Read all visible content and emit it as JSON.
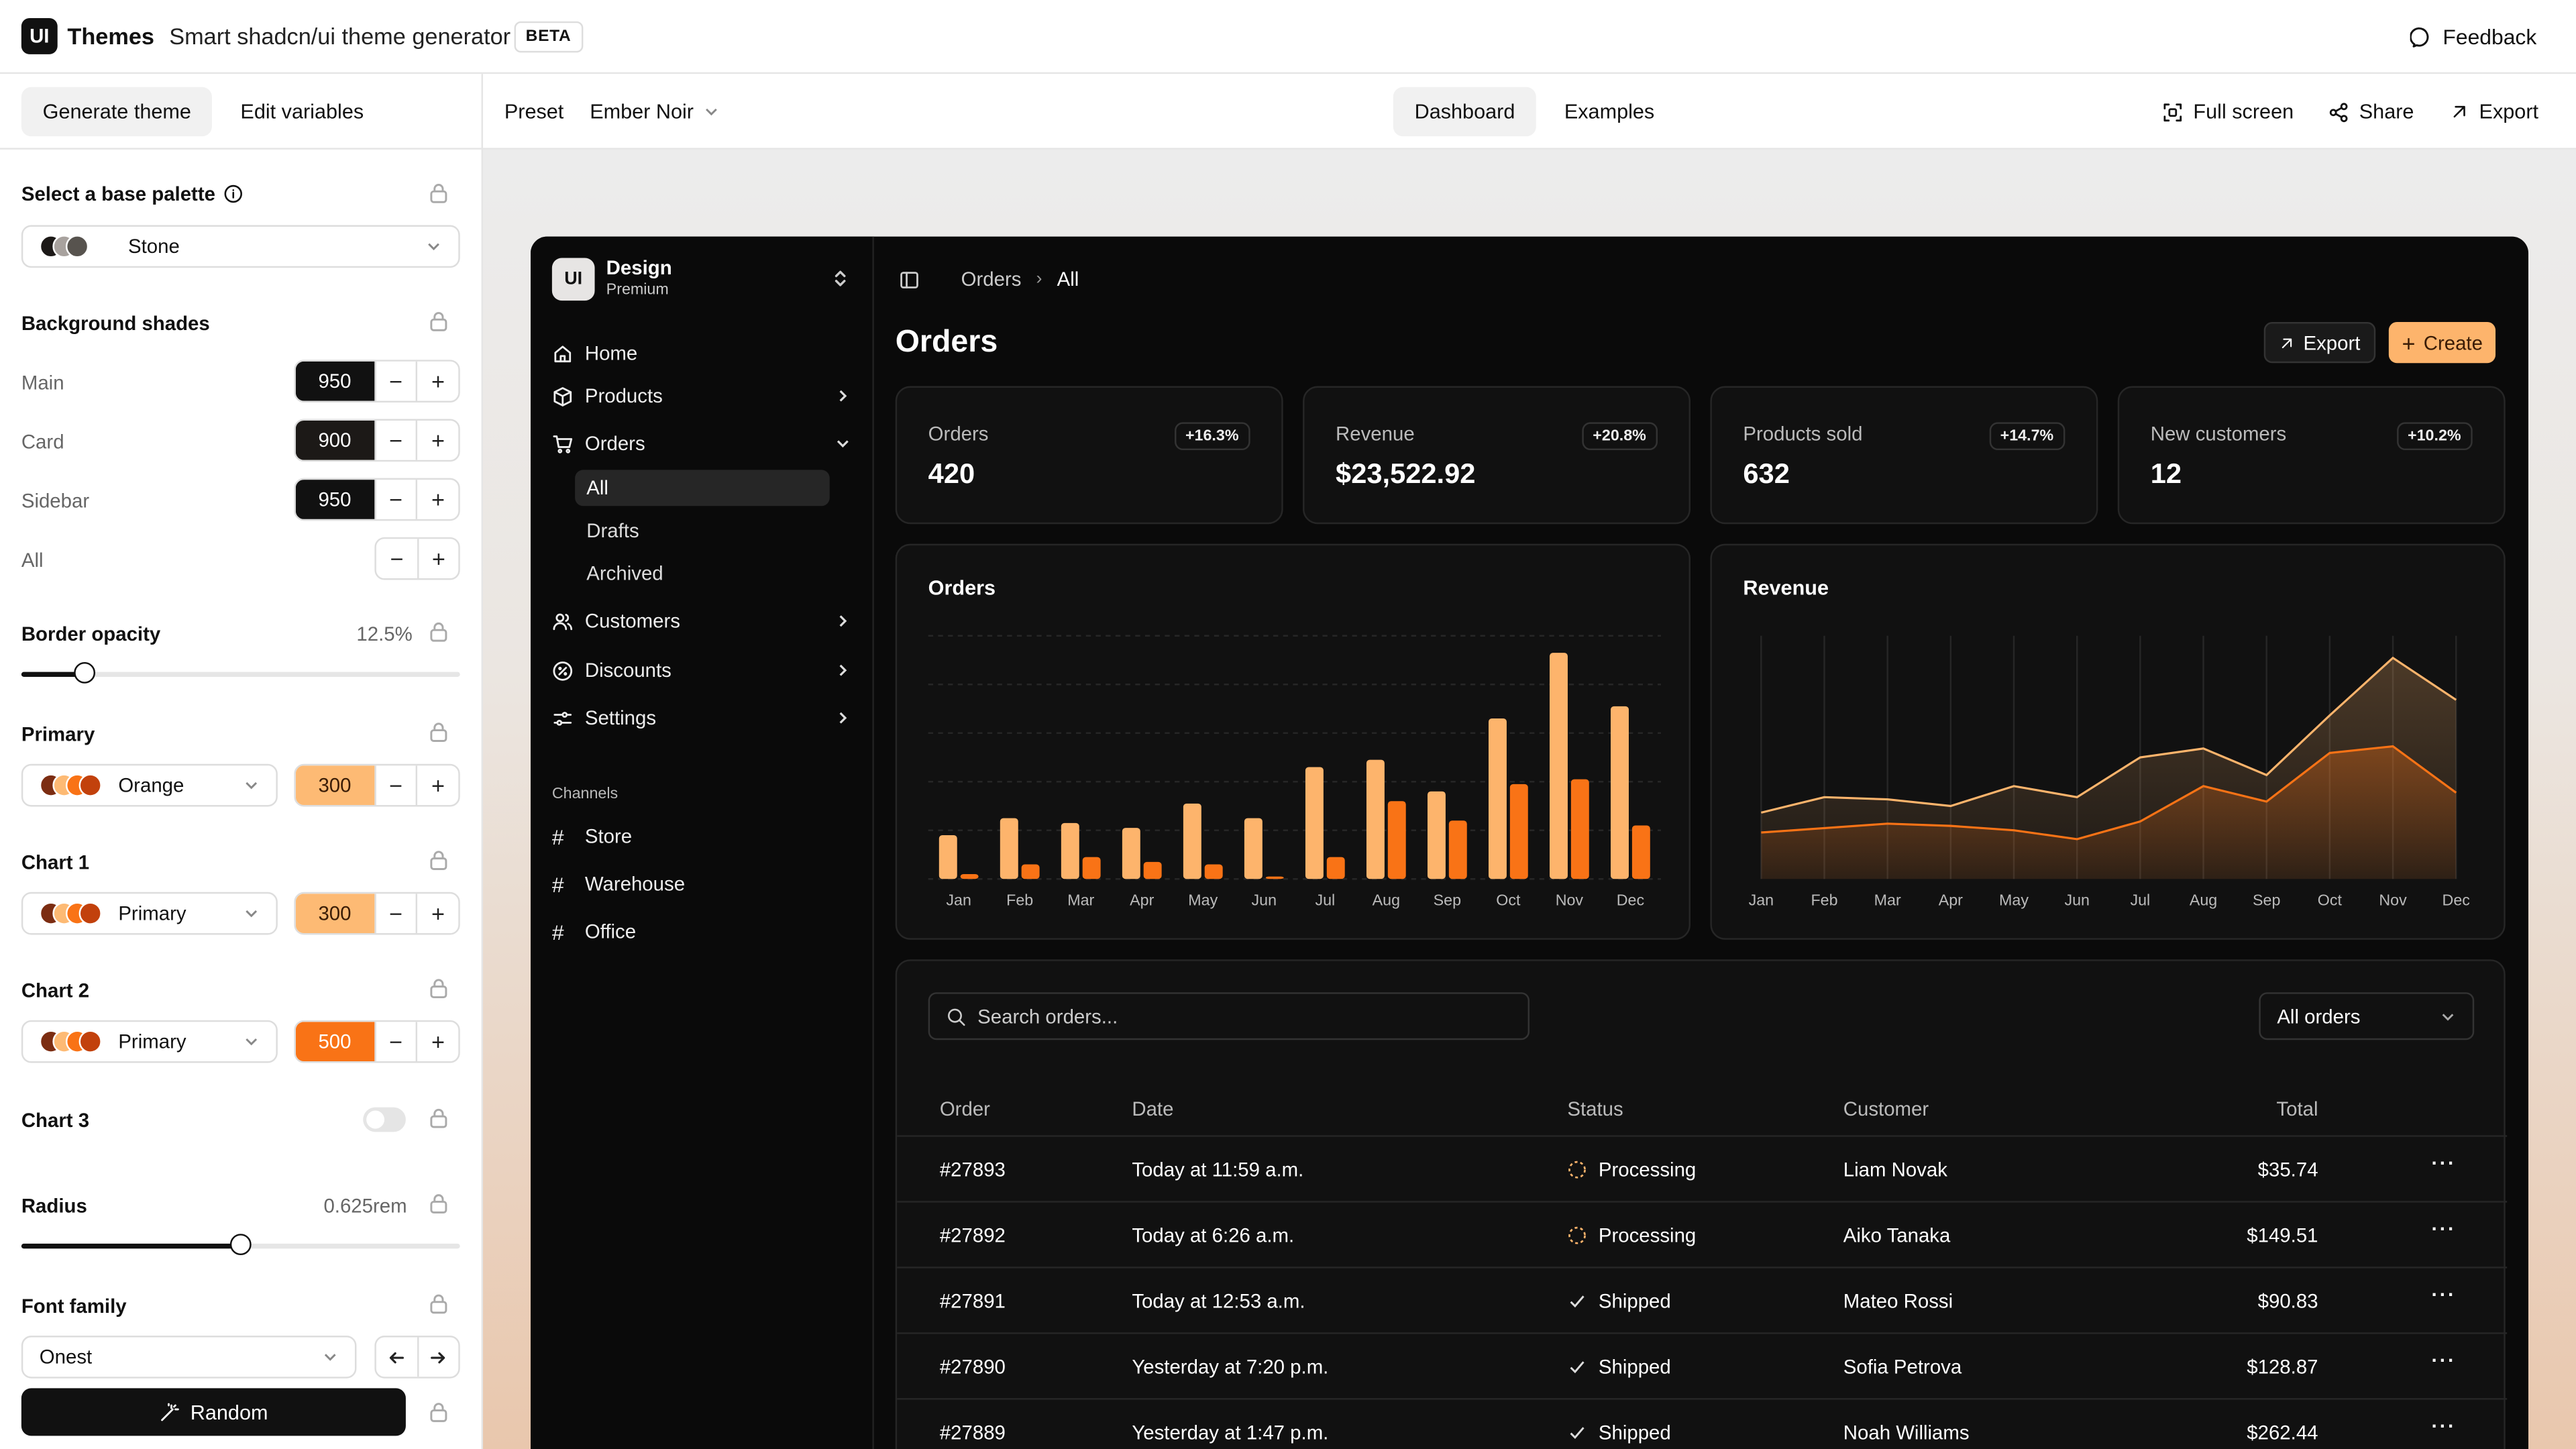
{
  "header": {
    "logo": "UI",
    "app_name": "Themes",
    "subtitle": "Smart shadcn/ui theme generator",
    "badge": "BETA",
    "feedback": "Feedback"
  },
  "left": {
    "tabs": [
      "Generate theme",
      "Edit variables"
    ],
    "base_palette": {
      "label": "Select a base palette",
      "value": "Stone"
    },
    "background_shades": {
      "label": "Background shades",
      "rows": [
        {
          "label": "Main",
          "value": "950"
        },
        {
          "label": "Card",
          "value": "900"
        },
        {
          "label": "Sidebar",
          "value": "950"
        },
        {
          "label": "All",
          "value": ""
        }
      ]
    },
    "border_opacity": {
      "label": "Border opacity",
      "value": "12.5%",
      "level": 0.125
    },
    "primary": {
      "label": "Primary",
      "select": "Orange",
      "shade": "300"
    },
    "chart1": {
      "label": "Chart 1",
      "select": "Primary",
      "shade": "300"
    },
    "chart2": {
      "label": "Chart 2",
      "select": "Primary",
      "shade": "500"
    },
    "chart3": {
      "label": "Chart 3",
      "enabled": false
    },
    "radius": {
      "label": "Radius",
      "value": "0.625rem",
      "level": 0.5
    },
    "font_family": {
      "label": "Font family",
      "value": "Onest"
    },
    "random_button": "Random"
  },
  "toolbar": {
    "preset_label": "Preset",
    "preset_value": "Ember Noir",
    "tabs": [
      "Dashboard",
      "Examples"
    ],
    "fullscreen": "Full screen",
    "share": "Share",
    "export": "Export"
  },
  "colors": {
    "accent_light": "#fdb46c",
    "accent": "#f97316",
    "app_bg": "#0a0a0a",
    "card_bg": "#111111"
  },
  "app": {
    "team": {
      "logo": "UI",
      "name": "Design",
      "plan": "Premium"
    },
    "nav": [
      {
        "label": "Home",
        "icon": "home-icon"
      },
      {
        "label": "Products",
        "icon": "box-icon"
      },
      {
        "label": "Orders",
        "icon": "cart-icon"
      },
      {
        "label": "Customers",
        "icon": "users-icon"
      },
      {
        "label": "Discounts",
        "icon": "percent-icon"
      },
      {
        "label": "Settings",
        "icon": "sliders-icon"
      }
    ],
    "orders_sub": [
      "All",
      "Drafts",
      "Archived"
    ],
    "channels_label": "Channels",
    "channels": [
      "Store",
      "Warehouse",
      "Office"
    ],
    "breadcrumb": [
      "Orders",
      "All"
    ],
    "page_title": "Orders",
    "export_btn": "Export",
    "create_btn": "Create",
    "kpis": [
      {
        "label": "Orders",
        "value": "420",
        "change": "+16.3%"
      },
      {
        "label": "Revenue",
        "value": "$23,522.92",
        "change": "+20.8%"
      },
      {
        "label": "Products sold",
        "value": "632",
        "change": "+14.7%"
      },
      {
        "label": "New customers",
        "value": "12",
        "change": "+10.2%"
      }
    ],
    "orders_chart_title": "Orders",
    "revenue_chart_title": "Revenue",
    "search_placeholder": "Search orders...",
    "filter": "All orders",
    "table": {
      "headers": [
        "Order",
        "Date",
        "Status",
        "Customer",
        "Total"
      ],
      "rows": [
        {
          "order": "#27893",
          "date": "Today at 11:59 a.m.",
          "status": "Processing",
          "customer": "Liam Novak",
          "total": "$35.74"
        },
        {
          "order": "#27892",
          "date": "Today at 6:26 a.m.",
          "status": "Processing",
          "customer": "Aiko Tanaka",
          "total": "$149.51"
        },
        {
          "order": "#27891",
          "date": "Today at 12:53 a.m.",
          "status": "Shipped",
          "customer": "Mateo Rossi",
          "total": "$90.83"
        },
        {
          "order": "#27890",
          "date": "Yesterday at 7:20 p.m.",
          "status": "Shipped",
          "customer": "Sofia Petrova",
          "total": "$128.87"
        },
        {
          "order": "#27889",
          "date": "Yesterday at 1:47 p.m.",
          "status": "Shipped",
          "customer": "Noah Williams",
          "total": "$262.44"
        }
      ]
    }
  },
  "chart_data": [
    {
      "type": "bar",
      "title": "Orders",
      "categories": [
        "Jan",
        "Feb",
        "Mar",
        "Apr",
        "May",
        "Jun",
        "Jul",
        "Aug",
        "Sep",
        "Oct",
        "Nov",
        "Dec"
      ],
      "series": [
        {
          "values": [
            18,
            25,
            23,
            21,
            31,
            25,
            46,
            49,
            36,
            66,
            93,
            71
          ]
        },
        {
          "values": [
            2,
            6,
            9,
            7,
            6,
            1,
            9,
            32,
            24,
            39,
            41,
            22
          ]
        }
      ],
      "ylim": [
        0,
        100
      ],
      "grid": true
    },
    {
      "type": "area",
      "title": "Revenue",
      "categories": [
        "Jan",
        "Feb",
        "Mar",
        "Apr",
        "May",
        "Jun",
        "Jul",
        "Aug",
        "Sep",
        "Oct",
        "Nov",
        "Dec"
      ],
      "series": [
        {
          "values": [
            30,
            37,
            36,
            33,
            42,
            37,
            55,
            59,
            47,
            74,
            100,
            81
          ]
        },
        {
          "values": [
            21,
            23,
            25,
            24,
            22,
            18,
            26,
            42,
            35,
            57,
            60,
            39
          ]
        }
      ],
      "ylim": [
        0,
        110
      ],
      "grid": true
    }
  ]
}
